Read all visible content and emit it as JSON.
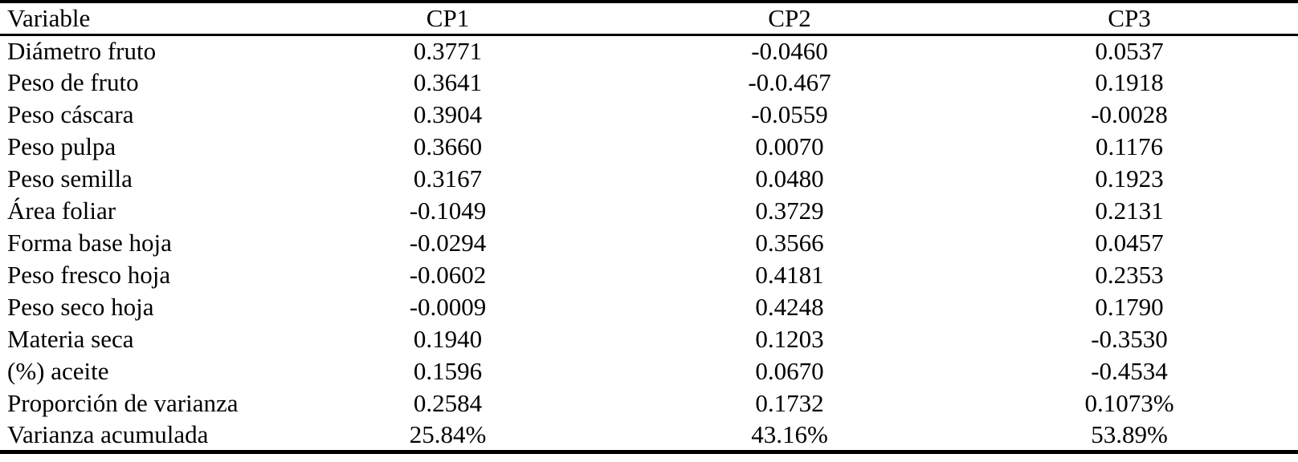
{
  "table": {
    "columns": [
      "Variable",
      "CP1",
      "CP2",
      "CP3"
    ],
    "rows": [
      {
        "variable": "Diámetro fruto",
        "cp1": "0.3771",
        "cp2": "-0.0460",
        "cp3": "0.0537"
      },
      {
        "variable": "Peso de fruto",
        "cp1": "0.3641",
        "cp2": "-0.0.467",
        "cp3": "0.1918"
      },
      {
        "variable": "Peso cáscara",
        "cp1": "0.3904",
        "cp2": "-0.0559",
        "cp3": "-0.0028"
      },
      {
        "variable": "Peso pulpa",
        "cp1": "0.3660",
        "cp2": "0.0070",
        "cp3": "0.1176"
      },
      {
        "variable": "Peso semilla",
        "cp1": "0.3167",
        "cp2": "0.0480",
        "cp3": "0.1923"
      },
      {
        "variable": "Área foliar",
        "cp1": "-0.1049",
        "cp2": "0.3729",
        "cp3": "0.2131"
      },
      {
        "variable": "Forma base hoja",
        "cp1": "-0.0294",
        "cp2": "0.3566",
        "cp3": "0.0457"
      },
      {
        "variable": "Peso fresco hoja",
        "cp1": "-0.0602",
        "cp2": "0.4181",
        "cp3": "0.2353"
      },
      {
        "variable": "Peso seco hoja",
        "cp1": "-0.0009",
        "cp2": "0.4248",
        "cp3": "0.1790"
      },
      {
        "variable": "Materia seca",
        "cp1": "0.1940",
        "cp2": "0.1203",
        "cp3": "-0.3530"
      },
      {
        "variable": "(%) aceite",
        "cp1": "0.1596",
        "cp2": "0.0670",
        "cp3": "-0.4534"
      },
      {
        "variable": "Proporción de varianza",
        "cp1": "0.2584",
        "cp2": "0.1732",
        "cp3": "0.1073%"
      },
      {
        "variable": "Varianza acumulada",
        "cp1": "25.84%",
        "cp2": "43.16%",
        "cp3": "53.89%"
      }
    ],
    "text_color": "#000000",
    "rule_color": "#000000",
    "background_color": "#ffffff"
  }
}
